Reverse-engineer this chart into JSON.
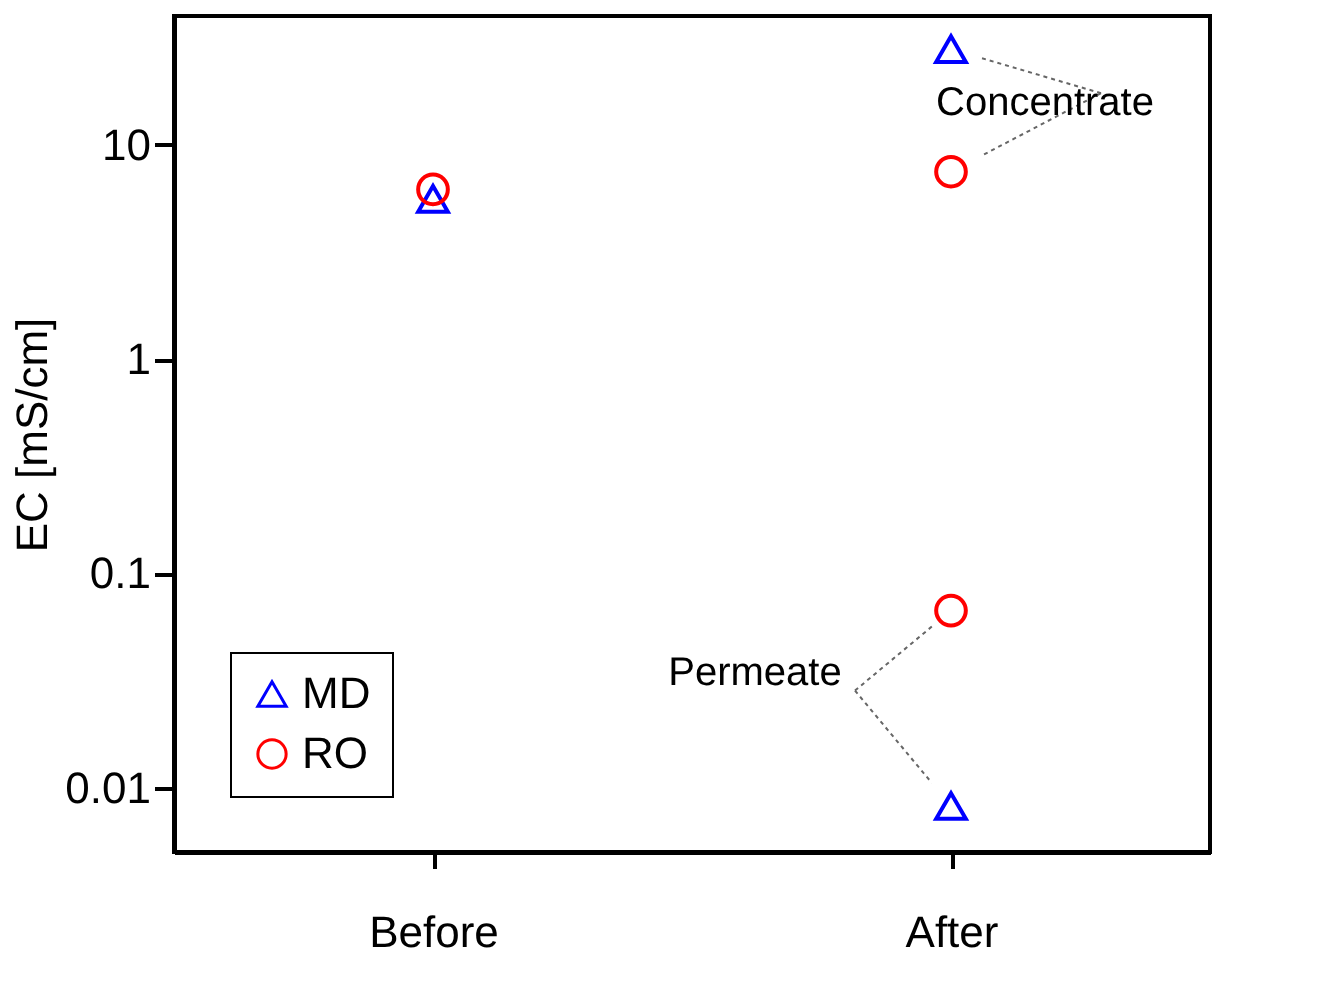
{
  "chart_data": {
    "type": "scatter",
    "ylabel": "EC [mS/cm]",
    "categories": [
      "Before",
      "After"
    ],
    "series": [
      {
        "name": "MD",
        "color": "#0000ff",
        "marker": "triangle",
        "x": [
          "Before",
          "After",
          "After"
        ],
        "values": [
          5.6,
          28,
          0.0082
        ]
      },
      {
        "name": "RO",
        "color": "#ff0000",
        "marker": "circle",
        "x": [
          "Before",
          "After",
          "After"
        ],
        "values": [
          6.2,
          7.5,
          0.067
        ]
      }
    ],
    "log": "y",
    "ylim": [
      0.005,
      40
    ],
    "yticks": [
      0.01,
      0.1,
      1,
      10
    ],
    "grid": false,
    "legend": "bottom left",
    "annotations": [
      {
        "text": "Concentrate",
        "x": "After",
        "y": 28
      },
      {
        "text": "Permeate",
        "x": "After",
        "y": 0.067
      }
    ]
  }
}
